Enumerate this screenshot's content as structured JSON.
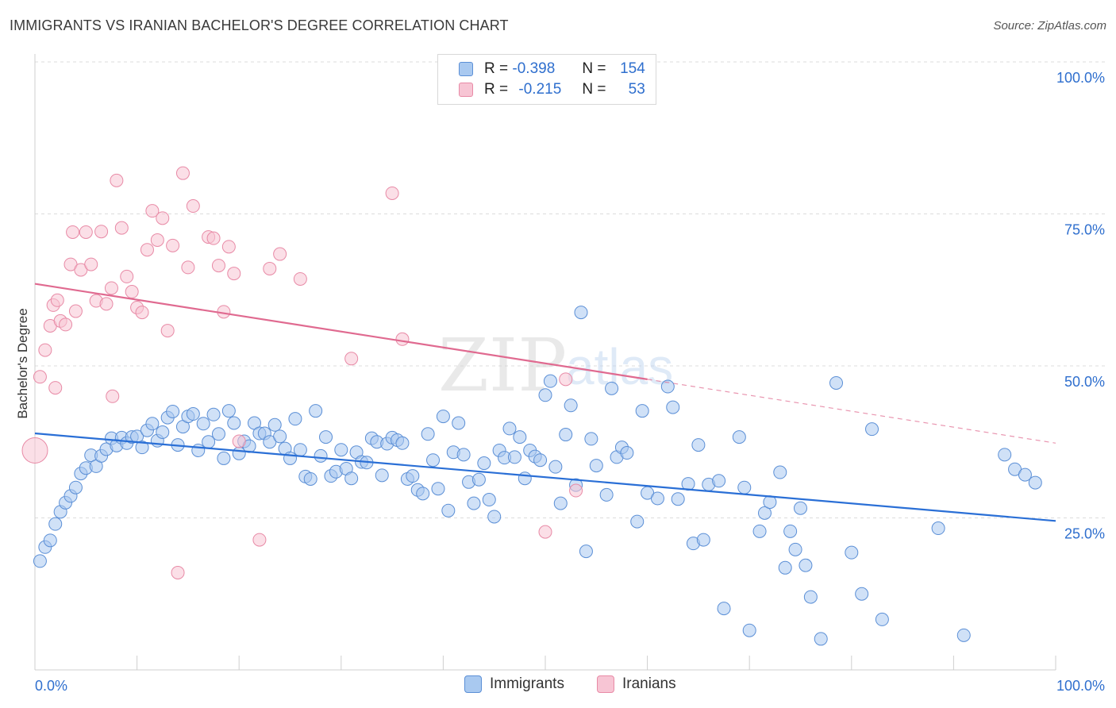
{
  "header": {
    "title": "IMMIGRANTS VS IRANIAN BACHELOR'S DEGREE CORRELATION CHART",
    "source": "Source: ZipAtlas.com"
  },
  "watermark": {
    "zip": "ZIP",
    "atlas": "atlas"
  },
  "legend": {
    "rows": [
      {
        "r_label": "R =",
        "r_value": "-0.398",
        "n_label": "N =",
        "n_value": "154",
        "color": "#a9c9f0",
        "border": "#5b8fd6"
      },
      {
        "r_label": "R =",
        "r_value": "-0.215",
        "n_label": "N =",
        "n_value": "53",
        "color": "#f7c5d4",
        "border": "#e88aa6"
      }
    ]
  },
  "bottom_legend": {
    "immigrants": "Immigrants",
    "iranians": "Iranians"
  },
  "chart_data": {
    "type": "scatter",
    "xlabel": "",
    "ylabel": "Bachelor's Degree",
    "xlim": [
      0,
      100
    ],
    "ylim": [
      0,
      100
    ],
    "x_tick_labels": [
      "0.0%",
      "100.0%"
    ],
    "y_tick_labels": [
      {
        "value": 100,
        "label": "100.0%"
      },
      {
        "value": 75,
        "label": "75.0%"
      },
      {
        "value": 50,
        "label": "50.0%"
      },
      {
        "value": 25,
        "label": "25.0%"
      }
    ],
    "grid": true,
    "legend_position": "top-center",
    "colors": {
      "immigrants": "#5b8fd6",
      "immigrants_fill": "#a9c9f0",
      "iranians": "#e06a90",
      "iranians_fill": "#f7c5d4",
      "tick_label": "#2f6fce"
    },
    "series": [
      {
        "name": "Immigrants",
        "trend": {
          "x": [
            0,
            100
          ],
          "y": [
            38.9,
            24.5
          ]
        },
        "points": [
          [
            0.5,
            17.9
          ],
          [
            1,
            20.2
          ],
          [
            1.5,
            21.3
          ],
          [
            2,
            24
          ],
          [
            2.5,
            26
          ],
          [
            3,
            27.5
          ],
          [
            3.5,
            28.6
          ],
          [
            4,
            30
          ],
          [
            4.5,
            32.3
          ],
          [
            5,
            33.2
          ],
          [
            5.5,
            35.3
          ],
          [
            6,
            33.5
          ],
          [
            6.5,
            35.2
          ],
          [
            7,
            36.3
          ],
          [
            7.5,
            38.1
          ],
          [
            8,
            36.9
          ],
          [
            8.5,
            38.2
          ],
          [
            9,
            37.3
          ],
          [
            9.5,
            38.3
          ],
          [
            10,
            38.4
          ],
          [
            10.5,
            36.6
          ],
          [
            11,
            39.4
          ],
          [
            11.5,
            40.5
          ],
          [
            12,
            37.7
          ],
          [
            12.5,
            39.1
          ],
          [
            13,
            41.5
          ],
          [
            13.5,
            42.5
          ],
          [
            14,
            37
          ],
          [
            14.5,
            40
          ],
          [
            15,
            41.7
          ],
          [
            15.5,
            42.1
          ],
          [
            16,
            36.1
          ],
          [
            16.5,
            40.5
          ],
          [
            17,
            37.5
          ],
          [
            17.5,
            42
          ],
          [
            18,
            38.8
          ],
          [
            18.5,
            34.8
          ],
          [
            19,
            42.6
          ],
          [
            19.5,
            40.6
          ],
          [
            20,
            35.6
          ],
          [
            20.5,
            37.6
          ],
          [
            21,
            36.8
          ],
          [
            21.5,
            40.6
          ],
          [
            22,
            38.9
          ],
          [
            22.5,
            38.9
          ],
          [
            23,
            37.5
          ],
          [
            23.5,
            40.3
          ],
          [
            24,
            38.4
          ],
          [
            24.5,
            36.4
          ],
          [
            25,
            34.8
          ],
          [
            25.5,
            41.3
          ],
          [
            26,
            36.2
          ],
          [
            26.5,
            31.8
          ],
          [
            27,
            31.4
          ],
          [
            27.5,
            42.6
          ],
          [
            28,
            35.2
          ],
          [
            28.5,
            38.3
          ],
          [
            29,
            31.9
          ],
          [
            29.5,
            32.6
          ],
          [
            30,
            36.2
          ],
          [
            30.5,
            33.1
          ],
          [
            31,
            31.5
          ],
          [
            31.5,
            35.8
          ],
          [
            32,
            34.2
          ],
          [
            32.5,
            34.1
          ],
          [
            33,
            38.1
          ],
          [
            33.5,
            37.5
          ],
          [
            34,
            32
          ],
          [
            34.5,
            37.2
          ],
          [
            35,
            38.2
          ],
          [
            35.5,
            37.8
          ],
          [
            36,
            37.3
          ],
          [
            36.5,
            31.4
          ],
          [
            37,
            31.9
          ],
          [
            37.5,
            29.6
          ],
          [
            38,
            29
          ],
          [
            38.5,
            38.8
          ],
          [
            39,
            34.5
          ],
          [
            39.5,
            29.8
          ],
          [
            40,
            41.7
          ],
          [
            40.5,
            26.2
          ],
          [
            41,
            35.8
          ],
          [
            41.5,
            40.6
          ],
          [
            42,
            35.4
          ],
          [
            42.5,
            30.9
          ],
          [
            43,
            27.4
          ],
          [
            43.5,
            31.3
          ],
          [
            44,
            34
          ],
          [
            44.5,
            28
          ],
          [
            45,
            25.2
          ],
          [
            45.5,
            36.1
          ],
          [
            46,
            34.9
          ],
          [
            46.5,
            39.7
          ],
          [
            47,
            35
          ],
          [
            47.5,
            38.3
          ],
          [
            48,
            31.5
          ],
          [
            48.5,
            36.1
          ],
          [
            49,
            35.1
          ],
          [
            49.5,
            34.5
          ],
          [
            50,
            45.2
          ],
          [
            50.5,
            47.5
          ],
          [
            51,
            33.4
          ],
          [
            51.5,
            27.4
          ],
          [
            52,
            38.7
          ],
          [
            52.5,
            43.5
          ],
          [
            53,
            30.4
          ],
          [
            53.5,
            58.8
          ],
          [
            54,
            19.5
          ],
          [
            54.5,
            38
          ],
          [
            55,
            33.6
          ],
          [
            56,
            28.8
          ],
          [
            56.5,
            46.3
          ],
          [
            57,
            35
          ],
          [
            57.5,
            36.6
          ],
          [
            58,
            35.7
          ],
          [
            59,
            24.4
          ],
          [
            59.5,
            42.6
          ],
          [
            60,
            29.1
          ],
          [
            61,
            28.2
          ],
          [
            62,
            46.6
          ],
          [
            62.5,
            43.2
          ],
          [
            63,
            28.1
          ],
          [
            64,
            30.6
          ],
          [
            64.5,
            20.8
          ],
          [
            65,
            37
          ],
          [
            65.5,
            21.4
          ],
          [
            66,
            30.5
          ],
          [
            67,
            31.1
          ],
          [
            67.5,
            10.1
          ],
          [
            69,
            38.3
          ],
          [
            69.5,
            30
          ],
          [
            70,
            6.5
          ],
          [
            71,
            22.8
          ],
          [
            71.5,
            25.8
          ],
          [
            72,
            27.6
          ],
          [
            73,
            32.5
          ],
          [
            73.5,
            16.8
          ],
          [
            74,
            22.8
          ],
          [
            74.5,
            19.8
          ],
          [
            75,
            26.6
          ],
          [
            75.5,
            17.2
          ],
          [
            76,
            12
          ],
          [
            77,
            5.1
          ],
          [
            78.5,
            47.2
          ],
          [
            80,
            19.3
          ],
          [
            81,
            12.5
          ],
          [
            82,
            39.6
          ],
          [
            83,
            8.3
          ],
          [
            88.5,
            23.3
          ],
          [
            91,
            5.7
          ],
          [
            95,
            35.4
          ],
          [
            96,
            33
          ],
          [
            97,
            32.1
          ],
          [
            98,
            30.8
          ]
        ]
      },
      {
        "name": "Iranians",
        "trend": {
          "x": [
            0,
            60
          ],
          "y": [
            63.5,
            47.8
          ]
        },
        "trend_dashed": {
          "x": [
            60,
            100
          ],
          "y": [
            47.8,
            37.3
          ]
        },
        "points": [
          [
            0,
            36.1
          ],
          [
            0.5,
            48.2
          ],
          [
            1,
            52.6
          ],
          [
            1.5,
            56.6
          ],
          [
            1.8,
            60
          ],
          [
            2,
            46.4
          ],
          [
            2.2,
            60.8
          ],
          [
            2.5,
            57.4
          ],
          [
            3,
            56.8
          ],
          [
            3.5,
            66.7
          ],
          [
            3.7,
            72
          ],
          [
            4,
            59
          ],
          [
            4.5,
            65.8
          ],
          [
            5,
            72
          ],
          [
            5.5,
            66.7
          ],
          [
            6,
            60.7
          ],
          [
            6.5,
            72.1
          ],
          [
            7,
            60.2
          ],
          [
            7.5,
            62.8
          ],
          [
            7.6,
            45
          ],
          [
            8,
            80.5
          ],
          [
            8.5,
            72.7
          ],
          [
            9,
            64.7
          ],
          [
            9.5,
            62.2
          ],
          [
            10,
            59.6
          ],
          [
            10.5,
            58.8
          ],
          [
            11,
            69.1
          ],
          [
            11.5,
            75.5
          ],
          [
            12,
            70.7
          ],
          [
            12.5,
            74.3
          ],
          [
            13,
            55.8
          ],
          [
            13.5,
            69.8
          ],
          [
            14,
            16
          ],
          [
            14.5,
            81.7
          ],
          [
            15,
            66.2
          ],
          [
            15.5,
            76.3
          ],
          [
            17,
            71.2
          ],
          [
            17.5,
            71
          ],
          [
            18,
            66.5
          ],
          [
            18.5,
            58.9
          ],
          [
            19,
            69.6
          ],
          [
            19.5,
            65.2
          ],
          [
            20,
            37.6
          ],
          [
            22,
            21.4
          ],
          [
            23,
            66
          ],
          [
            24,
            68.4
          ],
          [
            26,
            64.3
          ],
          [
            31,
            51.2
          ],
          [
            35,
            78.4
          ],
          [
            36,
            54.4
          ],
          [
            50,
            22.7
          ],
          [
            52,
            47.8
          ],
          [
            53,
            29.5
          ]
        ]
      }
    ]
  }
}
